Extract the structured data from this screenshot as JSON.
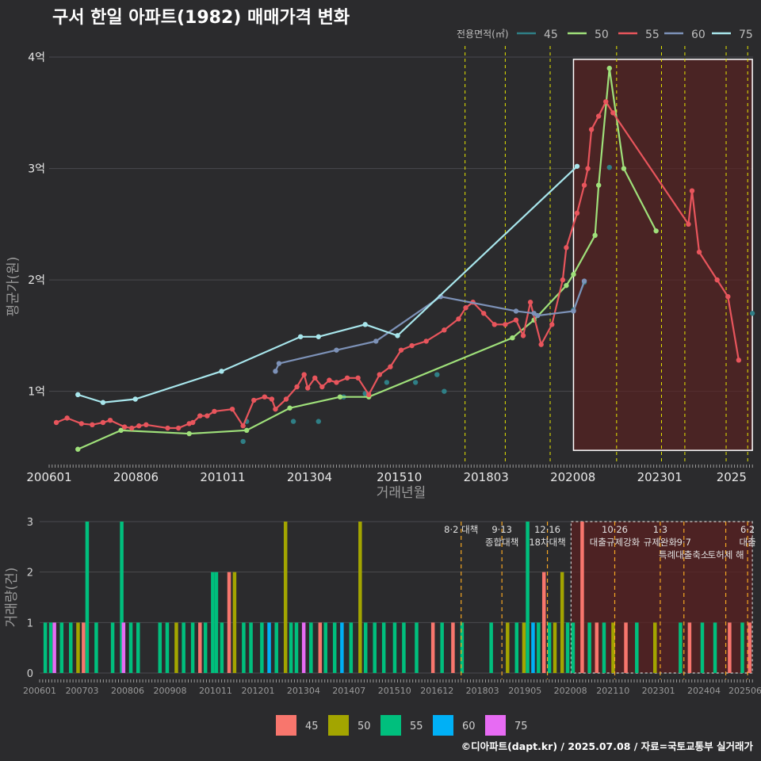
{
  "title": "구서 한일 아파트(1982) 매매가격 변화",
  "credit": "©디아파트(dapt.kr) / 2025.07.08 / 자료=국토교통부 실거래가",
  "colors": {
    "background": "#2b2b2d",
    "grid": "#4a4a4e",
    "line_45": "#2f7f86",
    "line_50": "#9fe07a",
    "line_55": "#e8555c",
    "line_60": "#7d92b8",
    "line_75": "#a8e6ec",
    "bar_45": "#f8766d",
    "bar_50": "#a3a500",
    "bar_55": "#00bf7d",
    "bar_60": "#00b0f6",
    "bar_75": "#e76bf3",
    "policy_line": "#e6e600",
    "policy_line_bottom": "#f5a623",
    "highlight": "#5a2020"
  },
  "chart_data": [
    {
      "type": "line",
      "title": "구서 한일 아파트(1982) 매매가격 변화",
      "xlabel": "거래년월",
      "ylabel": "평균가(원)",
      "xlim": [
        2006.0,
        2025.6
      ],
      "ylim": [
        0.35,
        4.1
      ],
      "y_unit": "억",
      "x_ticks": [
        "200601",
        "200806",
        "201011",
        "201304",
        "201510",
        "201803",
        "202008",
        "202301",
        "2025"
      ],
      "y_ticks": [
        "1억",
        "2억",
        "3억",
        "4억"
      ],
      "y_tick_values": [
        1,
        2,
        3,
        4
      ],
      "legend_title": "전용면적(㎡)",
      "legend_position": "top-right",
      "highlight_range": [
        2020.6,
        2025.58
      ],
      "policy_lines": [
        2017.58,
        2018.7,
        2019.95,
        2021.8,
        2023.05,
        2023.7,
        2024.85,
        2025.45
      ],
      "series": [
        {
          "name": "45",
          "x": [
            2011.4,
            2011.5,
            2012.8,
            2013.5,
            2014.2,
            2014.8,
            2015.4,
            2016.2,
            2016.8,
            2017.0,
            2020.6,
            2020.9,
            2021.6,
            2025.58
          ],
          "y": [
            0.55,
            0.73,
            0.73,
            0.73,
            0.95,
            0.98,
            1.08,
            1.08,
            1.15,
            1.0,
            1.73,
            1.98,
            3.01,
            1.7
          ]
        },
        {
          "name": "50",
          "x": [
            2006.8,
            2008.0,
            2009.9,
            2011.5,
            2012.7,
            2014.1,
            2014.9,
            2018.9,
            2019.5,
            2020.4,
            2020.6,
            2021.2,
            2021.3,
            2021.6,
            2022.0,
            2022.9
          ],
          "y": [
            0.48,
            0.65,
            0.62,
            0.65,
            0.85,
            0.95,
            0.95,
            1.48,
            1.64,
            1.95,
            2.05,
            2.4,
            2.85,
            3.9,
            3.0,
            2.44
          ]
        },
        {
          "name": "55",
          "x": [
            2006.2,
            2006.5,
            2006.9,
            2007.2,
            2007.5,
            2007.7,
            2008.1,
            2008.3,
            2008.5,
            2008.7,
            2009.3,
            2009.6,
            2009.9,
            2010.0,
            2010.2,
            2010.4,
            2010.6,
            2011.1,
            2011.4,
            2011.7,
            2012.0,
            2012.2,
            2012.3,
            2012.6,
            2012.9,
            2013.1,
            2013.2,
            2013.4,
            2013.6,
            2013.8,
            2014.0,
            2014.3,
            2014.6,
            2014.9,
            2015.2,
            2015.5,
            2015.8,
            2016.1,
            2016.5,
            2017.0,
            2017.4,
            2017.6,
            2017.8,
            2018.1,
            2018.4,
            2018.7,
            2019.0,
            2019.2,
            2019.4,
            2019.7,
            2020.0,
            2020.3,
            2020.4,
            2020.7,
            2020.9,
            2021.0,
            2021.1,
            2021.3,
            2021.5,
            2021.7,
            2023.8,
            2023.9,
            2024.1,
            2024.6,
            2024.9,
            2025.2
          ],
          "y": [
            0.72,
            0.76,
            0.71,
            0.7,
            0.72,
            0.74,
            0.68,
            0.67,
            0.69,
            0.7,
            0.67,
            0.67,
            0.71,
            0.72,
            0.78,
            0.78,
            0.82,
            0.84,
            0.69,
            0.92,
            0.95,
            0.93,
            0.84,
            0.93,
            1.04,
            1.15,
            1.03,
            1.12,
            1.04,
            1.1,
            1.08,
            1.12,
            1.12,
            0.97,
            1.15,
            1.22,
            1.37,
            1.41,
            1.45,
            1.55,
            1.65,
            1.75,
            1.8,
            1.7,
            1.6,
            1.6,
            1.64,
            1.5,
            1.8,
            1.42,
            1.6,
            2.0,
            2.29,
            2.6,
            2.85,
            3.0,
            3.35,
            3.47,
            3.6,
            3.5,
            2.5,
            2.8,
            2.25,
            2.0,
            1.85,
            1.28
          ]
        },
        {
          "name": "60",
          "x": [
            2012.3,
            2012.4,
            2014.0,
            2015.1,
            2016.9,
            2019.0,
            2019.5,
            2019.6,
            2020.6,
            2020.9
          ],
          "y": [
            1.18,
            1.25,
            1.37,
            1.45,
            1.85,
            1.72,
            1.7,
            1.68,
            1.72,
            1.99
          ]
        },
        {
          "name": "75",
          "x": [
            2006.8,
            2007.5,
            2008.4,
            2010.8,
            2013.0,
            2013.5,
            2014.8,
            2015.7,
            2020.7
          ],
          "y": [
            0.97,
            0.9,
            0.93,
            1.18,
            1.49,
            1.49,
            1.6,
            1.5,
            3.02
          ]
        }
      ]
    },
    {
      "type": "bar",
      "title": "",
      "xlabel": "",
      "ylabel": "거래량(건)",
      "xlim": [
        2006.0,
        2025.6
      ],
      "ylim": [
        0,
        3
      ],
      "y_ticks": [
        "0",
        "1",
        "2",
        "3"
      ],
      "y_tick_values": [
        0,
        1,
        2,
        3
      ],
      "x_ticks": [
        "200601",
        "200703",
        "200806",
        "200908",
        "201011",
        "201201",
        "201304",
        "201407",
        "201510",
        "201612",
        "201803",
        "201905",
        "202008",
        "202110",
        "202301",
        "202404",
        "202506"
      ],
      "legend_position": "bottom",
      "legend_entries": [
        "45",
        "50",
        "55",
        "60",
        "75"
      ],
      "highlight_range": [
        2020.6,
        2025.58
      ],
      "policy_lines": [
        2017.58,
        2018.7,
        2019.95,
        2021.8,
        2023.05,
        2023.7,
        2024.85,
        2025.45
      ],
      "annotations": [
        {
          "x": 2017.58,
          "lines": [
            "8·2 대책"
          ]
        },
        {
          "x": 2018.7,
          "lines": [
            "9·13",
            "종합대책"
          ]
        },
        {
          "x": 2019.95,
          "lines": [
            "12·16",
            "18차대책"
          ]
        },
        {
          "x": 2021.8,
          "lines": [
            "10·26",
            "대출규제강화"
          ]
        },
        {
          "x": 2023.05,
          "lines": [
            "1·3",
            "규제완화"
          ]
        },
        {
          "x": 2023.7,
          "lines": [
            "",
            "9·7",
            "특례대출축소"
          ]
        },
        {
          "x": 2024.85,
          "lines": [
            "",
            "",
            "토허제 해"
          ]
        },
        {
          "x": 2025.45,
          "lines": [
            "6·2",
            "대출"
          ]
        }
      ],
      "bars": [
        {
          "x": 2006.15,
          "v": 1,
          "s": "55"
        },
        {
          "x": 2006.3,
          "v": 1,
          "s": "55"
        },
        {
          "x": 2006.4,
          "v": 1,
          "s": "75"
        },
        {
          "x": 2006.6,
          "v": 1,
          "s": "55"
        },
        {
          "x": 2006.85,
          "v": 1,
          "s": "55"
        },
        {
          "x": 2007.05,
          "v": 1,
          "s": "50"
        },
        {
          "x": 2007.2,
          "v": 1,
          "s": "45"
        },
        {
          "x": 2007.3,
          "v": 3,
          "s": "55"
        },
        {
          "x": 2007.55,
          "v": 1,
          "s": "55"
        },
        {
          "x": 2008.0,
          "v": 1,
          "s": "55"
        },
        {
          "x": 2008.25,
          "v": 3,
          "s": "55"
        },
        {
          "x": 2008.3,
          "v": 1,
          "s": "75"
        },
        {
          "x": 2008.5,
          "v": 1,
          "s": "55"
        },
        {
          "x": 2008.7,
          "v": 1,
          "s": "55"
        },
        {
          "x": 2009.3,
          "v": 1,
          "s": "55"
        },
        {
          "x": 2009.5,
          "v": 1,
          "s": "55"
        },
        {
          "x": 2009.75,
          "v": 1,
          "s": "50"
        },
        {
          "x": 2009.95,
          "v": 1,
          "s": "55"
        },
        {
          "x": 2010.2,
          "v": 1,
          "s": "55"
        },
        {
          "x": 2010.4,
          "v": 1,
          "s": "45"
        },
        {
          "x": 2010.55,
          "v": 1,
          "s": "55"
        },
        {
          "x": 2010.75,
          "v": 2,
          "s": "55"
        },
        {
          "x": 2010.85,
          "v": 2,
          "s": "55"
        },
        {
          "x": 2011.0,
          "v": 1,
          "s": "55"
        },
        {
          "x": 2011.2,
          "v": 2,
          "s": "45"
        },
        {
          "x": 2011.35,
          "v": 2,
          "s": "50"
        },
        {
          "x": 2011.6,
          "v": 1,
          "s": "55"
        },
        {
          "x": 2011.8,
          "v": 1,
          "s": "55"
        },
        {
          "x": 2012.1,
          "v": 1,
          "s": "55"
        },
        {
          "x": 2012.3,
          "v": 1,
          "s": "60"
        },
        {
          "x": 2012.5,
          "v": 1,
          "s": "55"
        },
        {
          "x": 2012.75,
          "v": 3,
          "s": "50"
        },
        {
          "x": 2012.9,
          "v": 1,
          "s": "55"
        },
        {
          "x": 2013.05,
          "v": 1,
          "s": "55"
        },
        {
          "x": 2013.25,
          "v": 1,
          "s": "75"
        },
        {
          "x": 2013.45,
          "v": 1,
          "s": "55"
        },
        {
          "x": 2013.7,
          "v": 1,
          "s": "45"
        },
        {
          "x": 2013.85,
          "v": 1,
          "s": "55"
        },
        {
          "x": 2014.1,
          "v": 1,
          "s": "55"
        },
        {
          "x": 2014.3,
          "v": 1,
          "s": "60"
        },
        {
          "x": 2014.55,
          "v": 1,
          "s": "55"
        },
        {
          "x": 2014.8,
          "v": 3,
          "s": "50"
        },
        {
          "x": 2014.95,
          "v": 1,
          "s": "55"
        },
        {
          "x": 2015.2,
          "v": 1,
          "s": "55"
        },
        {
          "x": 2015.45,
          "v": 1,
          "s": "55"
        },
        {
          "x": 2015.75,
          "v": 1,
          "s": "55"
        },
        {
          "x": 2016.0,
          "v": 1,
          "s": "55"
        },
        {
          "x": 2016.35,
          "v": 1,
          "s": "55"
        },
        {
          "x": 2016.8,
          "v": 1,
          "s": "45"
        },
        {
          "x": 2017.05,
          "v": 1,
          "s": "55"
        },
        {
          "x": 2017.35,
          "v": 1,
          "s": "45"
        },
        {
          "x": 2017.6,
          "v": 1,
          "s": "55"
        },
        {
          "x": 2018.4,
          "v": 1,
          "s": "55"
        },
        {
          "x": 2018.85,
          "v": 1,
          "s": "50"
        },
        {
          "x": 2019.1,
          "v": 1,
          "s": "55"
        },
        {
          "x": 2019.3,
          "v": 1,
          "s": "50"
        },
        {
          "x": 2019.4,
          "v": 3,
          "s": "55"
        },
        {
          "x": 2019.55,
          "v": 1,
          "s": "60"
        },
        {
          "x": 2019.7,
          "v": 1,
          "s": "55"
        },
        {
          "x": 2019.85,
          "v": 2,
          "s": "45"
        },
        {
          "x": 2020.0,
          "v": 1,
          "s": "55"
        },
        {
          "x": 2020.15,
          "v": 1,
          "s": "50"
        },
        {
          "x": 2020.35,
          "v": 2,
          "s": "50"
        },
        {
          "x": 2020.5,
          "v": 1,
          "s": "55"
        },
        {
          "x": 2020.65,
          "v": 1,
          "s": "55"
        },
        {
          "x": 2020.9,
          "v": 3,
          "s": "45"
        },
        {
          "x": 2021.1,
          "v": 1,
          "s": "55"
        },
        {
          "x": 2021.3,
          "v": 1,
          "s": "45"
        },
        {
          "x": 2021.5,
          "v": 1,
          "s": "55"
        },
        {
          "x": 2021.75,
          "v": 1,
          "s": "50"
        },
        {
          "x": 2022.1,
          "v": 1,
          "s": "45"
        },
        {
          "x": 2022.4,
          "v": 1,
          "s": "55"
        },
        {
          "x": 2022.9,
          "v": 1,
          "s": "50"
        },
        {
          "x": 2023.6,
          "v": 1,
          "s": "55"
        },
        {
          "x": 2023.85,
          "v": 1,
          "s": "45"
        },
        {
          "x": 2024.2,
          "v": 1,
          "s": "55"
        },
        {
          "x": 2024.55,
          "v": 1,
          "s": "55"
        },
        {
          "x": 2024.95,
          "v": 1,
          "s": "45"
        },
        {
          "x": 2025.3,
          "v": 1,
          "s": "55"
        },
        {
          "x": 2025.5,
          "v": 1,
          "s": "45"
        }
      ]
    }
  ]
}
